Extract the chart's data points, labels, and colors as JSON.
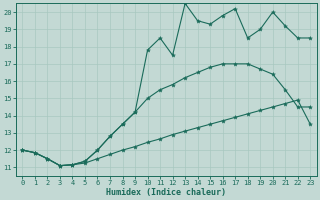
{
  "bg_color": "#c3d9d4",
  "grid_color": "#a8c8c0",
  "line_color": "#1a6b5a",
  "xlabel": "Humidex (Indice chaleur)",
  "xlim": [
    -0.5,
    23.5
  ],
  "ylim": [
    10.5,
    20.5
  ],
  "yticks": [
    11,
    12,
    13,
    14,
    15,
    16,
    17,
    18,
    19,
    20
  ],
  "xticks": [
    0,
    1,
    2,
    3,
    4,
    5,
    6,
    7,
    8,
    9,
    10,
    11,
    12,
    13,
    14,
    15,
    16,
    17,
    18,
    19,
    20,
    21,
    22,
    23
  ],
  "line1_x": [
    0,
    1,
    2,
    3,
    4,
    5,
    6,
    7,
    8,
    9,
    10,
    11,
    12,
    13,
    14,
    15,
    16,
    17,
    18,
    19,
    20,
    21,
    22,
    23
  ],
  "line1_y": [
    12.0,
    11.85,
    11.5,
    11.1,
    11.15,
    11.25,
    11.5,
    11.75,
    12.0,
    12.2,
    12.45,
    12.65,
    12.9,
    13.1,
    13.3,
    13.5,
    13.7,
    13.9,
    14.1,
    14.3,
    14.5,
    14.7,
    14.9,
    13.5
  ],
  "line2_x": [
    0,
    1,
    2,
    3,
    4,
    5,
    6,
    7,
    8,
    9,
    10,
    11,
    12,
    13,
    14,
    15,
    16,
    17,
    18,
    19,
    20,
    21,
    22,
    23
  ],
  "line2_y": [
    12.0,
    11.85,
    11.5,
    11.1,
    11.15,
    11.35,
    12.0,
    12.8,
    13.5,
    14.2,
    15.0,
    15.5,
    15.8,
    16.2,
    16.5,
    16.8,
    17.0,
    17.0,
    17.0,
    16.7,
    16.4,
    15.5,
    14.5,
    14.5
  ],
  "line3_x": [
    0,
    1,
    2,
    3,
    4,
    5,
    6,
    7,
    8,
    9,
    10,
    11,
    12,
    13,
    14,
    15,
    16,
    17,
    18,
    19,
    20,
    21,
    22,
    23
  ],
  "line3_y": [
    12.0,
    11.85,
    11.5,
    11.1,
    11.15,
    11.35,
    12.0,
    12.8,
    13.5,
    14.2,
    17.8,
    18.5,
    17.5,
    20.5,
    19.5,
    19.3,
    19.8,
    20.2,
    18.5,
    19.0,
    20.0,
    19.2,
    18.5,
    18.5
  ],
  "marker": "*",
  "marker_size": 3.0,
  "line_width": 0.8,
  "tick_fontsize": 5.0,
  "xlabel_fontsize": 6.0
}
